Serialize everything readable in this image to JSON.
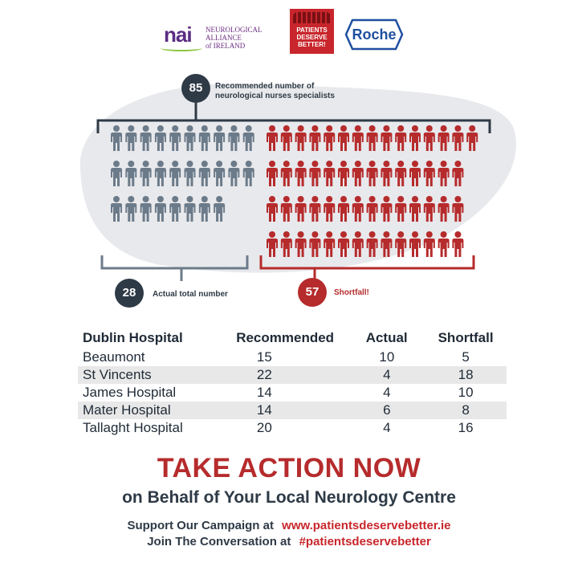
{
  "logos": {
    "nai_mark": "nai",
    "nai_text_1": "NEUROLOGICAL ALLIANCE",
    "nai_text_2": "of IRELAND",
    "pdb_text": [
      "PATIENTS",
      "DESERVE",
      "BETTER!"
    ],
    "roche": "Roche"
  },
  "infographic": {
    "recommended_count": "85",
    "recommended_label_1": "Recommended number of",
    "recommended_label_2": "neurological nurses specialists",
    "actual_count": "28",
    "actual_label": "Actual total number",
    "shortfall_count": "57",
    "shortfall_label": "Shortfall!",
    "actual_people": 28,
    "shortfall_people": 57,
    "colors": {
      "actual": "#6c7b8a",
      "shortfall": "#b62b2c",
      "blob": "#e8e9ec",
      "dark": "#2e3a46"
    },
    "icon": "person-icon"
  },
  "table": {
    "headers": [
      "Dublin Hospital",
      "Recommended",
      "Actual",
      "Shortfall"
    ],
    "rows": [
      [
        "Beaumont",
        "15",
        "10",
        "5"
      ],
      [
        "St Vincents",
        "22",
        "4",
        "18"
      ],
      [
        "James Hospital",
        "14",
        "4",
        "10"
      ],
      [
        "Mater Hospital",
        "14",
        "6",
        "8"
      ],
      [
        "Tallaght Hospital",
        "20",
        "4",
        "16"
      ]
    ]
  },
  "footer": {
    "headline": "TAKE ACTION NOW",
    "subhead": "on Behalf of Your Local Neurology Centre",
    "line1_prefix": "Support Our Campaign at",
    "line1_link": "www.patientsdeservebetter.ie",
    "line2_prefix": "Join The Conversation at",
    "line2_link": "#patientsdeservebetter"
  }
}
